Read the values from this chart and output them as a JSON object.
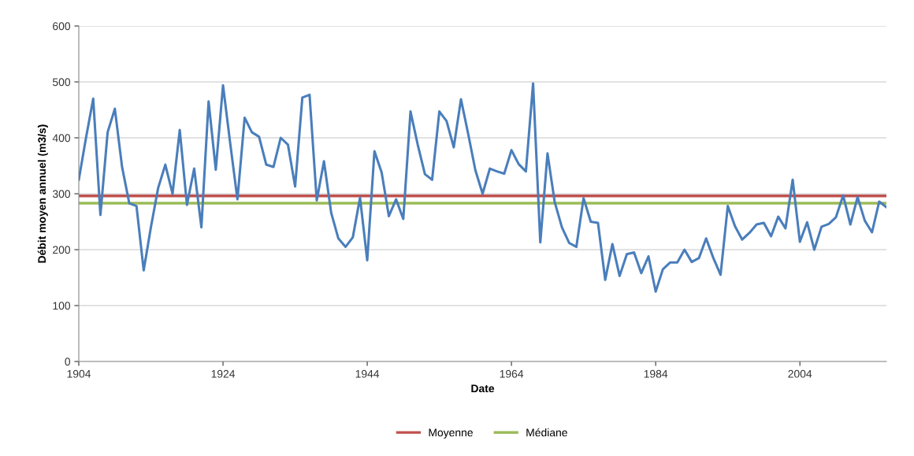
{
  "chart_data": {
    "type": "line",
    "xlabel": "Date",
    "ylabel": "Débit moyen annuel (m3/s)",
    "x": [
      1904,
      1905,
      1906,
      1907,
      1908,
      1909,
      1910,
      1911,
      1912,
      1913,
      1914,
      1915,
      1916,
      1917,
      1918,
      1919,
      1920,
      1921,
      1922,
      1923,
      1924,
      1925,
      1926,
      1927,
      1928,
      1929,
      1930,
      1931,
      1932,
      1933,
      1934,
      1935,
      1936,
      1937,
      1938,
      1939,
      1940,
      1941,
      1942,
      1943,
      1944,
      1945,
      1946,
      1947,
      1948,
      1949,
      1950,
      1951,
      1952,
      1953,
      1954,
      1955,
      1956,
      1957,
      1958,
      1959,
      1960,
      1961,
      1962,
      1963,
      1964,
      1965,
      1966,
      1967,
      1968,
      1969,
      1970,
      1971,
      1972,
      1973,
      1974,
      1975,
      1976,
      1977,
      1978,
      1979,
      1980,
      1981,
      1982,
      1983,
      1984,
      1985,
      1986,
      1987,
      1988,
      1989,
      1990,
      1991,
      1992,
      1993,
      1994,
      1995,
      1996,
      1997,
      1998,
      1999,
      2000,
      2001,
      2002,
      2003,
      2004,
      2005,
      2006,
      2007,
      2008,
      2009,
      2010,
      2011,
      2012,
      2013,
      2014,
      2015,
      2016
    ],
    "series": [
      {
        "color": "#4a7ebb",
        "values": [
          325,
          400,
          470,
          262,
          410,
          452,
          348,
          283,
          278,
          163,
          240,
          310,
          352,
          300,
          414,
          280,
          345,
          240,
          465,
          343,
          494,
          390,
          290,
          436,
          410,
          402,
          352,
          348,
          400,
          388,
          313,
          472,
          477,
          288,
          358,
          266,
          220,
          205,
          222,
          293,
          181,
          376,
          338,
          260,
          290,
          255,
          447,
          388,
          335,
          325,
          447,
          430,
          383,
          469,
          407,
          342,
          300,
          345,
          340,
          336,
          378,
          353,
          340,
          497,
          213,
          372,
          285,
          240,
          212,
          205,
          292,
          250,
          248,
          146,
          210,
          153,
          192,
          195,
          158,
          188,
          125,
          165,
          177,
          177,
          200,
          178,
          185,
          220,
          185,
          155,
          278,
          242,
          218,
          230,
          245,
          248,
          224,
          259,
          238,
          325,
          214,
          249,
          200,
          241,
          246,
          258,
          297,
          245,
          294,
          252,
          231,
          286,
          276
        ]
      }
    ],
    "ref_lines": [
      {
        "axis": "y",
        "value": 296,
        "label": "Moyenne",
        "color": "#c0504d"
      },
      {
        "axis": "y",
        "value": 283,
        "label": "Médiane",
        "color": "#9bbb59"
      }
    ],
    "xlim": [
      1904,
      2016
    ],
    "xticks": [
      1904,
      1924,
      1944,
      1964,
      1984,
      2004
    ],
    "ylim": [
      0,
      600
    ],
    "yticks": [
      0,
      100,
      200,
      300,
      400,
      500,
      600
    ],
    "grid": "y",
    "legend": "bottom",
    "marker": "none",
    "line_style": "solid"
  }
}
